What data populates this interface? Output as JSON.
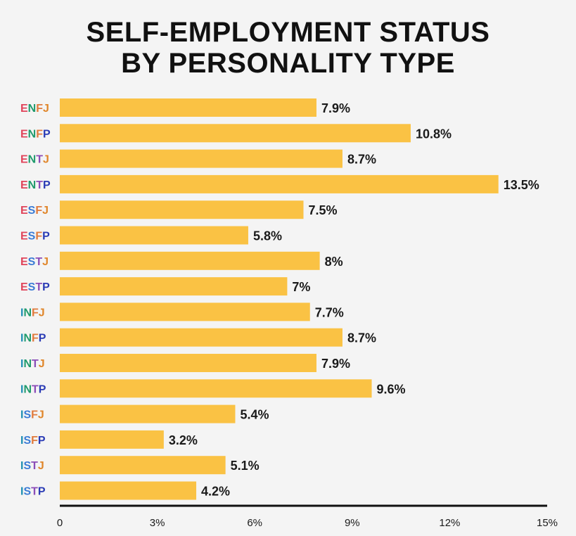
{
  "title_line1": "SELF-EMPLOYMENT STATUS",
  "title_line2": "BY PERSONALITY TYPE",
  "colors": {
    "bar": "#fac244",
    "axis": "#111111",
    "E": "#e0455b",
    "I": "#1f8fb3",
    "N": "#1f9a6c",
    "S": "#3a7bd5",
    "T": "#8b4db8",
    "F": "#e07a3c",
    "J": "#e0862a",
    "P": "#2a3bb5"
  },
  "chart_data": {
    "type": "bar",
    "orientation": "horizontal",
    "title": "SELF-EMPLOYMENT STATUS BY PERSONALITY TYPE",
    "categories": [
      "ENFJ",
      "ENFP",
      "ENTJ",
      "ENTP",
      "ESFJ",
      "ESFP",
      "ESTJ",
      "ESTP",
      "INFJ",
      "INFP",
      "INTJ",
      "INTP",
      "ISFJ",
      "ISFP",
      "ISTJ",
      "ISTP"
    ],
    "values": [
      7.9,
      10.8,
      8.7,
      13.5,
      7.5,
      5.8,
      8,
      7,
      7.7,
      8.7,
      7.9,
      9.6,
      5.4,
      3.2,
      5.1,
      4.2
    ],
    "value_labels": [
      "7.9%",
      "10.8%",
      "8.7%",
      "13.5%",
      "7.5%",
      "5.8%",
      "8%",
      "7%",
      "7.7%",
      "8.7%",
      "7.9%",
      "9.6%",
      "5.4%",
      "3.2%",
      "5.1%",
      "4.2%"
    ],
    "xlim": [
      0,
      15
    ],
    "x_ticks": [
      0,
      3,
      6,
      9,
      12,
      15
    ],
    "x_tick_labels": [
      "0",
      "3%",
      "6%",
      "9%",
      "12%",
      "15%"
    ],
    "xlabel": "",
    "ylabel": "",
    "grid": false
  }
}
